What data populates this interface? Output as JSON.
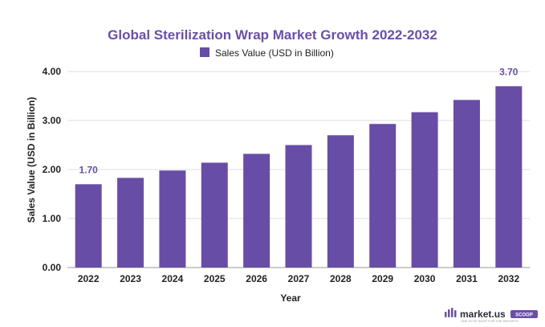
{
  "chart_data": {
    "type": "bar",
    "title": "Global Sterilization Wrap Market Growth 2022-2032",
    "xlabel": "Year",
    "ylabel": "Sales Value (USD in Billion)",
    "categories": [
      "2022",
      "2023",
      "2024",
      "2025",
      "2026",
      "2027",
      "2028",
      "2029",
      "2030",
      "2031",
      "2032"
    ],
    "series": [
      {
        "name": "Sales Value (USD in Billion)",
        "values": [
          1.7,
          1.83,
          1.98,
          2.14,
          2.32,
          2.5,
          2.7,
          2.93,
          3.17,
          3.42,
          3.7
        ]
      }
    ],
    "ylim": [
      0,
      4
    ],
    "yticks": [
      "0.00",
      "1.00",
      "2.00",
      "3.00",
      "4.00"
    ],
    "data_labels": [
      {
        "index": 0,
        "text": "1.70"
      },
      {
        "index": 10,
        "text": "3.70"
      }
    ],
    "grid": true,
    "legend_position": "top-center",
    "bar_color": "#684da6",
    "grid_color": "#dcdcdc"
  },
  "branding": {
    "name": "market.us",
    "badge": "SCOOP",
    "tagline": "ONE STOP SHOP FOR THE REPORTS",
    "badge_color": "#6a4fa8"
  }
}
